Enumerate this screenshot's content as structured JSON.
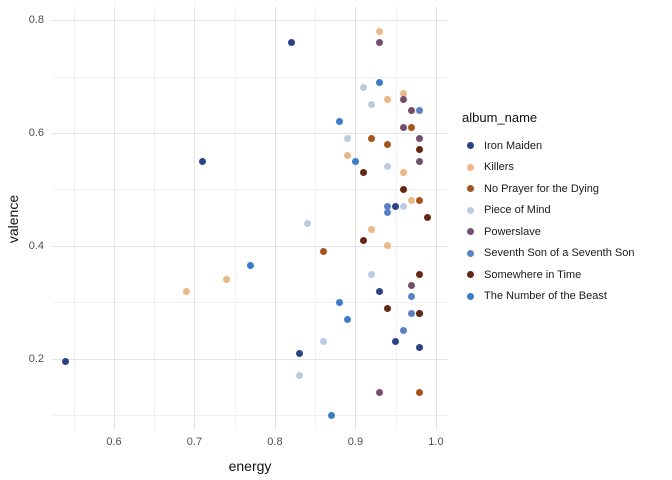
{
  "chart_data": {
    "type": "scatter",
    "title": "",
    "xlabel": "energy",
    "ylabel": "valence",
    "legend_title": "album_name",
    "legend_position": "right",
    "grid": true,
    "xlim": [
      0.523,
      1.015
    ],
    "ylim": [
      0.074,
      0.825
    ],
    "x_ticks": [
      0.6,
      0.7,
      0.8,
      0.9,
      1.0
    ],
    "x_tick_labels": [
      "0.6",
      "0.7",
      "0.8",
      "0.9",
      "1.0"
    ],
    "x_minor_ticks": [
      0.55,
      0.65,
      0.75,
      0.85,
      0.95
    ],
    "y_ticks": [
      0.2,
      0.4,
      0.6,
      0.8
    ],
    "y_tick_labels": [
      "0.2",
      "0.4",
      "0.6",
      "0.8"
    ],
    "y_minor_ticks": [
      0.1,
      0.3,
      0.5,
      0.7
    ],
    "series": [
      {
        "name": "Iron Maiden",
        "color": "#2b4188",
        "points": [
          [
            0.54,
            0.195
          ],
          [
            0.71,
            0.55
          ],
          [
            0.82,
            0.76
          ],
          [
            0.83,
            0.21
          ],
          [
            0.93,
            0.32
          ],
          [
            0.95,
            0.23
          ],
          [
            0.95,
            0.47
          ],
          [
            0.98,
            0.28
          ],
          [
            0.98,
            0.22
          ]
        ]
      },
      {
        "name": "Killers",
        "color": "#eab887",
        "points": [
          [
            0.69,
            0.32
          ],
          [
            0.74,
            0.34
          ],
          [
            0.89,
            0.56
          ],
          [
            0.92,
            0.43
          ],
          [
            0.93,
            0.78
          ],
          [
            0.94,
            0.4
          ],
          [
            0.94,
            0.66
          ],
          [
            0.96,
            0.53
          ],
          [
            0.96,
            0.67
          ],
          [
            0.97,
            0.48
          ]
        ]
      },
      {
        "name": "No Prayer for the Dying",
        "color": "#a4551c",
        "points": [
          [
            0.86,
            0.39
          ],
          [
            0.92,
            0.59
          ],
          [
            0.94,
            0.58
          ],
          [
            0.97,
            0.61
          ],
          [
            0.98,
            0.48
          ],
          [
            0.98,
            0.14
          ]
        ]
      },
      {
        "name": "Piece of Mind",
        "color": "#bccbe2",
        "points": [
          [
            0.83,
            0.17
          ],
          [
            0.84,
            0.44
          ],
          [
            0.86,
            0.23
          ],
          [
            0.89,
            0.59
          ],
          [
            0.91,
            0.68
          ],
          [
            0.92,
            0.65
          ],
          [
            0.92,
            0.35
          ],
          [
            0.94,
            0.54
          ],
          [
            0.96,
            0.47
          ]
        ]
      },
      {
        "name": "Powerslave",
        "color": "#744f6d",
        "points": [
          [
            0.93,
            0.76
          ],
          [
            0.93,
            0.14
          ],
          [
            0.96,
            0.66
          ],
          [
            0.96,
            0.61
          ],
          [
            0.97,
            0.64
          ],
          [
            0.97,
            0.33
          ],
          [
            0.98,
            0.59
          ],
          [
            0.98,
            0.55
          ]
        ]
      },
      {
        "name": "Seventh Son of a Seventh Son",
        "color": "#5a82c2",
        "points": [
          [
            0.94,
            0.47
          ],
          [
            0.94,
            0.46
          ],
          [
            0.96,
            0.25
          ],
          [
            0.97,
            0.31
          ],
          [
            0.97,
            0.28
          ],
          [
            0.98,
            0.64
          ]
        ]
      },
      {
        "name": "Somewhere in Time",
        "color": "#642814",
        "points": [
          [
            0.91,
            0.41
          ],
          [
            0.91,
            0.53
          ],
          [
            0.94,
            0.29
          ],
          [
            0.96,
            0.5
          ],
          [
            0.98,
            0.57
          ],
          [
            0.98,
            0.35
          ],
          [
            0.98,
            0.28
          ],
          [
            0.99,
            0.45
          ]
        ]
      },
      {
        "name": "The Number of the Beast",
        "color": "#3a7dca",
        "points": [
          [
            0.77,
            0.365
          ],
          [
            0.87,
            0.1
          ],
          [
            0.88,
            0.3
          ],
          [
            0.88,
            0.62
          ],
          [
            0.89,
            0.27
          ],
          [
            0.9,
            0.55
          ],
          [
            0.93,
            0.69
          ]
        ]
      }
    ]
  }
}
